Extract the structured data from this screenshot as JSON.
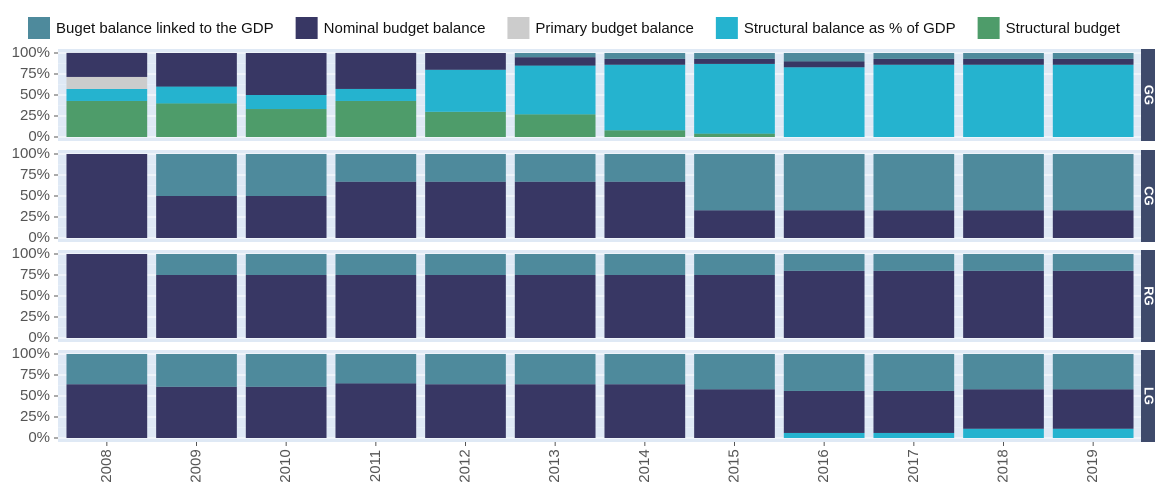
{
  "chart_data": {
    "type": "bar",
    "stacked": true,
    "legend": "top",
    "categories": [
      "2008",
      "2009",
      "2010",
      "2011",
      "2012",
      "2013",
      "2014",
      "2015",
      "2016",
      "2017",
      "2018",
      "2019"
    ],
    "ylim": [
      0,
      100
    ],
    "yticks": [
      {
        "value": 0,
        "label": "0%"
      },
      {
        "value": 25,
        "label": "25%"
      },
      {
        "value": 50,
        "label": "50%"
      },
      {
        "value": 75,
        "label": "75%"
      },
      {
        "value": 100,
        "label": "100%"
      }
    ],
    "grid": true,
    "series": [
      {
        "name": "Buget balance linked to the GDP",
        "color": "#4e8a9c"
      },
      {
        "name": "Nominal budget balance",
        "color": "#383764"
      },
      {
        "name": "Primary budget balance",
        "color": "#cccccc"
      },
      {
        "name": "Structural balance as % of GDP",
        "color": "#25b3cf"
      },
      {
        "name": "Structural budget",
        "color": "#4e9c6a"
      }
    ],
    "facets": [
      {
        "label": "GG",
        "series": [
          {
            "values": [
              0,
              0,
              0,
              0,
              0,
              5,
              7,
              7,
              10,
              7,
              7,
              7
            ]
          },
          {
            "values": [
              28.6,
              40,
              50,
              42.9,
              20,
              10,
              7,
              6,
              7,
              7,
              7,
              7
            ]
          },
          {
            "values": [
              14.3,
              0,
              0,
              0,
              0,
              0,
              0,
              0,
              0,
              0,
              0,
              0
            ]
          },
          {
            "values": [
              14.3,
              20,
              16.7,
              14.3,
              50,
              58,
              78,
              83,
              83,
              86,
              86,
              86
            ]
          },
          {
            "values": [
              42.9,
              40,
              33.3,
              42.9,
              30,
              27,
              8,
              4,
              0,
              0,
              0,
              0
            ]
          }
        ]
      },
      {
        "label": "CG",
        "series": [
          {
            "values": [
              0,
              50,
              50,
              33,
              33,
              33,
              33,
              67,
              67,
              67,
              67,
              67
            ]
          },
          {
            "values": [
              100,
              50,
              50,
              67,
              67,
              67,
              67,
              33,
              33,
              33,
              33,
              33
            ]
          },
          {
            "values": [
              0,
              0,
              0,
              0,
              0,
              0,
              0,
              0,
              0,
              0,
              0,
              0
            ]
          },
          {
            "values": [
              0,
              0,
              0,
              0,
              0,
              0,
              0,
              0,
              0,
              0,
              0,
              0
            ]
          },
          {
            "values": [
              0,
              0,
              0,
              0,
              0,
              0,
              0,
              0,
              0,
              0,
              0,
              0
            ]
          }
        ]
      },
      {
        "label": "RG",
        "series": [
          {
            "values": [
              0,
              25,
              25,
              25,
              25,
              25,
              25,
              25,
              20,
              20,
              20,
              20
            ]
          },
          {
            "values": [
              100,
              75,
              75,
              75,
              75,
              75,
              75,
              75,
              80,
              80,
              80,
              80
            ]
          },
          {
            "values": [
              0,
              0,
              0,
              0,
              0,
              0,
              0,
              0,
              0,
              0,
              0,
              0
            ]
          },
          {
            "values": [
              0,
              0,
              0,
              0,
              0,
              0,
              0,
              0,
              0,
              0,
              0,
              0
            ]
          },
          {
            "values": [
              0,
              0,
              0,
              0,
              0,
              0,
              0,
              0,
              0,
              0,
              0,
              0
            ]
          }
        ]
      },
      {
        "label": "LG",
        "series": [
          {
            "values": [
              36,
              39,
              39,
              35,
              36,
              36,
              36,
              42,
              44,
              44,
              42,
              42
            ]
          },
          {
            "values": [
              64,
              61,
              61,
              65,
              64,
              64,
              64,
              58,
              50,
              50,
              47,
              47
            ]
          },
          {
            "values": [
              0,
              0,
              0,
              0,
              0,
              0,
              0,
              0,
              0,
              0,
              0,
              0
            ]
          },
          {
            "values": [
              0,
              0,
              0,
              0,
              0,
              0,
              0,
              0,
              6,
              6,
              11,
              11
            ]
          },
          {
            "values": [
              0,
              0,
              0,
              0,
              0,
              0,
              0,
              0,
              0,
              0,
              0,
              0
            ]
          }
        ]
      }
    ]
  }
}
